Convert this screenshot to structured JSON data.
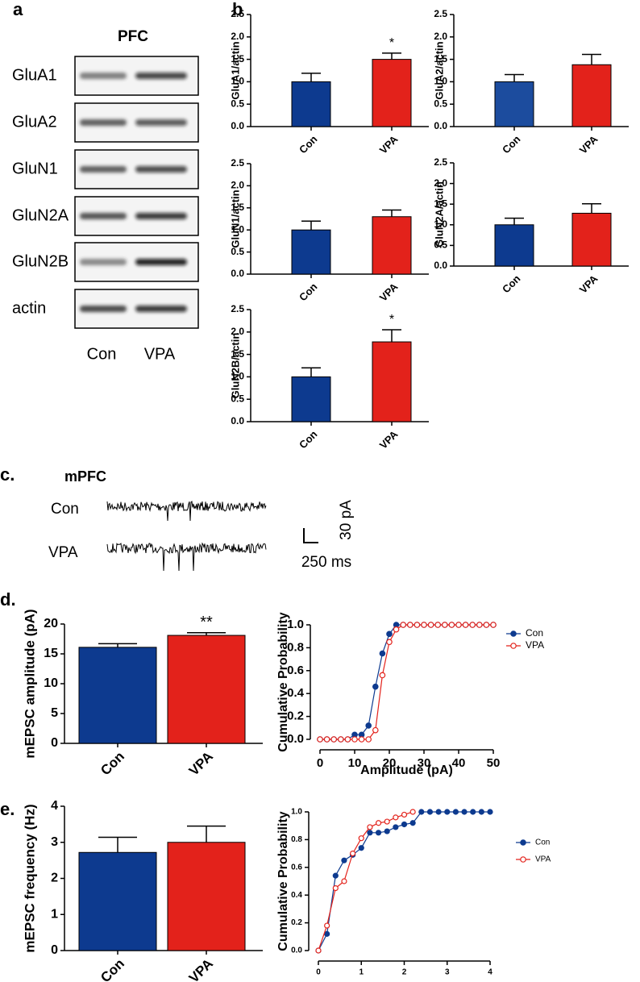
{
  "panel_labels": [
    "a",
    "b",
    "c.",
    "d.",
    "e."
  ],
  "blot": {
    "title": "PFC",
    "rows": [
      "GluA1",
      "GluA2",
      "GluN1",
      "GluN2A",
      "GluN2B",
      "actin"
    ],
    "lanes": [
      "Con",
      "VPA"
    ]
  },
  "traces": {
    "title": "mPFC",
    "rows": [
      "Con",
      "VPA"
    ],
    "scale_y": "30 pA",
    "scale_x": "250 ms"
  },
  "chart_data": [
    {
      "type": "bar",
      "ylabel": "GluA1/actin",
      "categories": [
        "Con",
        "VPA"
      ],
      "values": [
        1,
        1.5
      ],
      "errors": [
        0.19,
        0.14
      ],
      "colors": [
        "#0d3a8f",
        "#e3221b"
      ],
      "annotations": [
        {
          "category": "VPA",
          "text": "*"
        }
      ],
      "ylim": [
        0,
        2.5
      ],
      "yticks": [
        {
          "value": 0,
          "label": "0.0"
        },
        0.5,
        {
          "value": 1,
          "label": "1.0"
        },
        1.5,
        {
          "value": 2,
          "label": "2.0"
        },
        2.5
      ]
    },
    {
      "type": "bar",
      "ylabel": "GluA2/actin",
      "categories": [
        "Con",
        "VPA"
      ],
      "values": [
        1,
        1.38
      ],
      "errors": [
        0.16,
        0.23
      ],
      "colors": [
        "#1c4c9e",
        "#e3221b"
      ],
      "ylim": [
        0,
        2.5
      ],
      "yticks": [
        {
          "value": 0,
          "label": "0.0"
        },
        0.5,
        {
          "value": 1,
          "label": "1.0"
        },
        1.5,
        {
          "value": 2,
          "label": "2.0"
        },
        2.5
      ]
    },
    {
      "type": "bar",
      "ylabel": "GluN1/actin",
      "categories": [
        "Con",
        "VPA"
      ],
      "values": [
        1,
        1.3
      ],
      "errors": [
        0.2,
        0.15
      ],
      "colors": [
        "#0d3a8f",
        "#e3221b"
      ],
      "ylim": [
        0,
        2.5
      ],
      "yticks": [
        {
          "value": 0,
          "label": "0.0"
        },
        0.5,
        {
          "value": 1,
          "label": "1.0"
        },
        1.5,
        {
          "value": 2,
          "label": "2.0"
        },
        2.5
      ]
    },
    {
      "type": "bar",
      "ylabel": "GluN2A/actin",
      "categories": [
        "Con",
        "VPA"
      ],
      "values": [
        1,
        1.28
      ],
      "errors": [
        0.16,
        0.23
      ],
      "colors": [
        "#0d3a8f",
        "#e3221b"
      ],
      "ylim": [
        0,
        2.5
      ],
      "yticks": [
        {
          "value": 0,
          "label": "0.0"
        },
        0.5,
        {
          "value": 1,
          "label": "1.0"
        },
        1.5,
        {
          "value": 2,
          "label": "2.0"
        },
        2.5
      ]
    },
    {
      "type": "bar",
      "ylabel": "GluN2B/actin",
      "categories": [
        "Con",
        "VPA"
      ],
      "values": [
        1,
        1.78
      ],
      "errors": [
        0.2,
        0.27
      ],
      "colors": [
        "#0d3a8f",
        "#e3221b"
      ],
      "annotations": [
        {
          "category": "VPA",
          "text": "*"
        }
      ],
      "ylim": [
        0,
        2.5
      ],
      "yticks": [
        {
          "value": 0,
          "label": "0.0"
        },
        0.5,
        {
          "value": 1,
          "label": "1.0"
        },
        1.5,
        {
          "value": 2,
          "label": "2.0"
        },
        2.5
      ]
    },
    {
      "type": "bar",
      "ylabel": "mEPSC amplitude (pA)",
      "categories": [
        "Con",
        "VPA"
      ],
      "values": [
        16.1,
        18.1
      ],
      "errors": [
        0.6,
        0.45
      ],
      "colors": [
        "#0d3a8f",
        "#e3221b"
      ],
      "annotations": [
        {
          "category": "VPA",
          "text": "**"
        }
      ],
      "ylim": [
        0,
        20
      ],
      "yticks": [
        0,
        5,
        10,
        15,
        20
      ]
    },
    {
      "type": "line",
      "ylabel": "Cumulative Probability",
      "xlabel": "Amplitude (pA)",
      "x": [
        0,
        2,
        4,
        6,
        8,
        10,
        12,
        14,
        16,
        18,
        20,
        22,
        24,
        26,
        28,
        30,
        32,
        34,
        36,
        38,
        40,
        42,
        44,
        46,
        48,
        50
      ],
      "series": [
        {
          "name": "Con",
          "color": "#0d3a8f",
          "filled": true,
          "values": [
            0,
            0,
            0,
            0,
            0,
            0.04,
            0.04,
            0.12,
            0.46,
            0.75,
            0.92,
            1,
            1,
            1,
            1,
            1,
            1,
            1,
            1,
            1,
            1,
            1,
            1,
            1,
            1,
            1
          ]
        },
        {
          "name": "VPA",
          "color": "#e3221b",
          "filled": false,
          "values": [
            0,
            0,
            0,
            0,
            0,
            0,
            0,
            0,
            0.08,
            0.56,
            0.85,
            0.96,
            1,
            1,
            1,
            1,
            1,
            1,
            1,
            1,
            1,
            1,
            1,
            1,
            1,
            1
          ]
        }
      ],
      "xlim": [
        0,
        50
      ],
      "xticks": [
        0,
        10,
        20,
        30,
        40,
        50
      ],
      "ylim": [
        0,
        1
      ],
      "yticks": [
        {
          "value": 0,
          "label": "0.0"
        },
        0.2,
        0.4,
        0.6,
        0.8,
        {
          "value": 1,
          "label": "1.0"
        }
      ],
      "legend": "right"
    },
    {
      "type": "bar",
      "ylabel": "mEPSC frequency (Hz)",
      "categories": [
        "Con",
        "VPA"
      ],
      "values": [
        2.72,
        3.0
      ],
      "errors": [
        0.42,
        0.45
      ],
      "colors": [
        "#0d3a8f",
        "#e3221b"
      ],
      "ylim": [
        0,
        4
      ],
      "yticks": [
        0,
        1,
        2,
        3,
        4
      ]
    },
    {
      "type": "line",
      "ylabel": "Cumulative Probability",
      "x": [
        0,
        0.2,
        0.4,
        0.6,
        0.8,
        1.0,
        1.2,
        1.4,
        1.6,
        1.8,
        2.0,
        2.2,
        2.4,
        2.6,
        2.8,
        3.0,
        3.2,
        3.4,
        3.6,
        3.8,
        4.0
      ],
      "series": [
        {
          "name": "Con",
          "color": "#0d3a8f",
          "filled": true,
          "values": [
            0,
            0.12,
            0.54,
            0.65,
            0.69,
            0.74,
            0.85,
            0.85,
            0.86,
            0.89,
            0.91,
            0.92,
            1,
            1,
            1,
            1,
            1,
            1,
            1,
            1,
            1
          ]
        },
        {
          "name": "VPA",
          "color": "#e3221b",
          "filled": false,
          "values": [
            0,
            0.18,
            0.45,
            0.5,
            0.7,
            0.81,
            0.89,
            0.92,
            0.93,
            0.96,
            0.98,
            1,
            null,
            null,
            null,
            null,
            null,
            null,
            null,
            null,
            null
          ]
        }
      ],
      "xlim": [
        0,
        4
      ],
      "xticks": [
        0,
        1,
        2,
        3,
        4
      ],
      "ylim": [
        0,
        1
      ],
      "yticks": [
        {
          "value": 0,
          "label": "0.0"
        },
        0.2,
        0.4,
        0.6,
        0.8,
        {
          "value": 1,
          "label": "1.0"
        }
      ],
      "legend": "right"
    }
  ]
}
